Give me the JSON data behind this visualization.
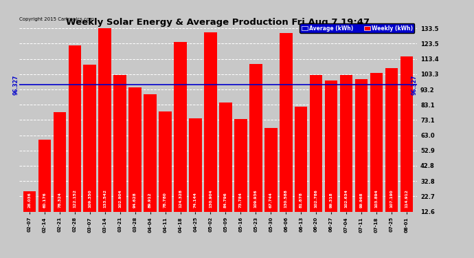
{
  "title": "Weekly Solar Energy & Average Production Fri Aug 7 19:47",
  "copyright": "Copyright 2015 Cartronics.com",
  "categories": [
    "02-07",
    "02-14",
    "02-21",
    "02-28",
    "03-07",
    "03-14",
    "03-21",
    "03-28",
    "04-04",
    "04-11",
    "04-18",
    "04-25",
    "05-02",
    "05-09",
    "05-16",
    "05-23",
    "05-30",
    "06-06",
    "06-13",
    "06-20",
    "06-27",
    "07-04",
    "07-11",
    "07-18",
    "07-25",
    "08-01"
  ],
  "values": [
    26.036,
    60.176,
    78.324,
    122.152,
    109.35,
    133.542,
    102.904,
    94.628,
    89.912,
    78.78,
    124.328,
    74.144,
    130.904,
    84.796,
    73.784,
    109.936,
    67.744,
    130.588,
    81.878,
    102.786,
    99.318,
    102.634,
    99.968,
    103.894,
    107.19,
    114.912
  ],
  "average": 96.327,
  "bar_color": "#FF0000",
  "average_color": "#0000CC",
  "background_color": "#C8C8C8",
  "plot_bg_color": "#C8C8C8",
  "ylim_min": 12.6,
  "ylim_max": 133.5,
  "yticks": [
    12.6,
    22.7,
    32.8,
    42.8,
    52.9,
    63.0,
    73.1,
    83.1,
    93.2,
    103.3,
    113.4,
    123.5,
    133.5
  ],
  "legend_average_label": "Average (kWh)",
  "legend_weekly_label": "Weekly (kWh)",
  "value_label_fontsize": 4.2,
  "title_fontsize": 9.5,
  "copyright_fontsize": 5.0,
  "ytick_fontsize": 6.0,
  "xtick_fontsize": 5.0
}
